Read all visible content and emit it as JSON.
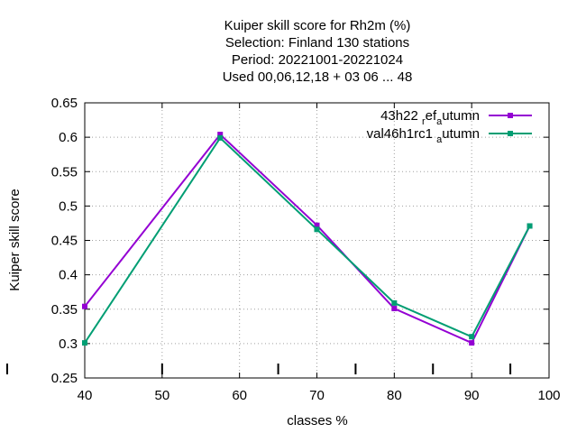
{
  "chart_data": {
    "type": "line",
    "title_lines": [
      "Kuiper skill score  for Rh2m (%)",
      "Selection: Finland    130 stations",
      "Period: 20221001-20221024",
      "Used  00,06,12,18  + 03 06 ... 48"
    ],
    "xlabel": "classes %",
    "ylabel": "Kuiper skill score",
    "xlim": [
      40,
      100
    ],
    "ylim": [
      0.25,
      0.65
    ],
    "xticks": [
      40,
      50,
      60,
      70,
      80,
      90,
      100
    ],
    "yticks": [
      0.25,
      0.3,
      0.35,
      0.4,
      0.45,
      0.5,
      0.55,
      0.6,
      0.65
    ],
    "ytick_labels": [
      "0.25",
      "0.3",
      "0.35",
      "0.4",
      "0.45",
      "0.5",
      "0.55",
      "0.6",
      "0.65"
    ],
    "xtick_labels": [
      "40",
      "50",
      "60",
      "70",
      "80",
      "90",
      "100"
    ],
    "grid": true,
    "legend_position": "top-right",
    "class_boundaries": [
      50,
      65,
      75,
      85,
      95
    ],
    "series": [
      {
        "legend_main": "43h22",
        "legend_parts": [
          {
            "text": "43h22 ",
            "sub": false
          },
          {
            "text": "r",
            "sub": true
          },
          {
            "text": "ef",
            "sub": false
          },
          {
            "text": "a",
            "sub": true
          },
          {
            "text": "utumn",
            "sub": false
          }
        ],
        "color": "#9400d3",
        "x": [
          40,
          57.5,
          70,
          80,
          90,
          97.5
        ],
        "y": [
          0.354,
          0.604,
          0.472,
          0.351,
          0.301,
          0.471
        ]
      },
      {
        "legend_parts": [
          {
            "text": "val46h1rc1 ",
            "sub": false
          },
          {
            "text": "a",
            "sub": true
          },
          {
            "text": "utumn",
            "sub": false
          }
        ],
        "color": "#009e73",
        "x": [
          40,
          57.5,
          70,
          80,
          90,
          97.5
        ],
        "y": [
          0.301,
          0.599,
          0.466,
          0.359,
          0.31,
          0.471
        ]
      }
    ]
  }
}
